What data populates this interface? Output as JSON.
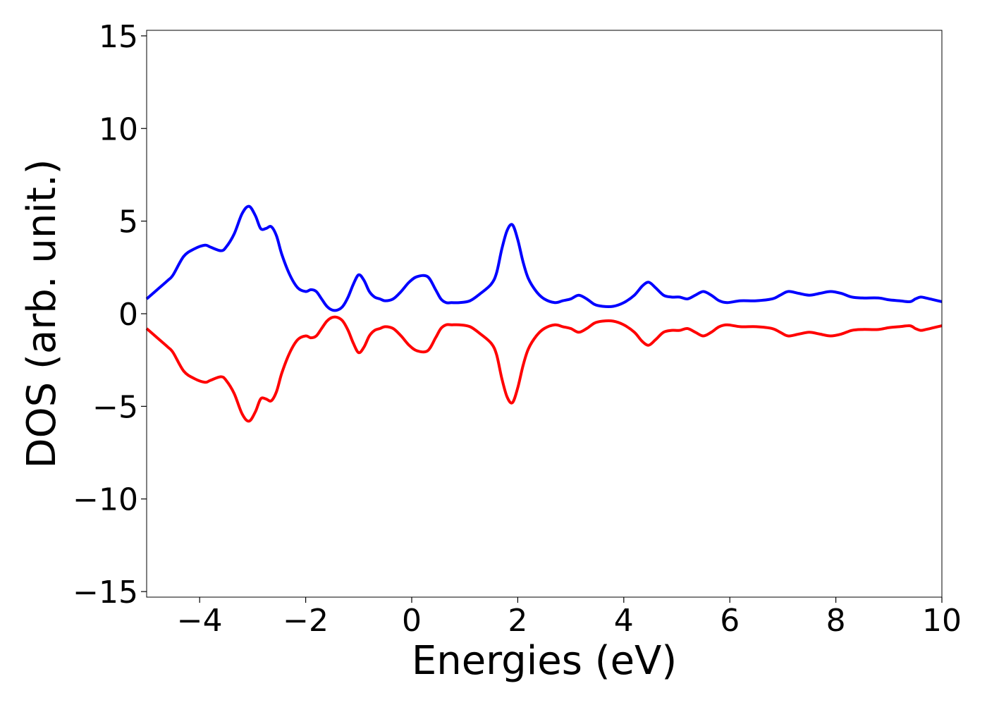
{
  "chart_data": {
    "type": "line",
    "title": "",
    "xlabel": "Energies (eV)",
    "ylabel": "DOS (arb. unit.)",
    "xlim": [
      -5,
      10
    ],
    "ylim": [
      -15.3,
      15.3
    ],
    "grid": false,
    "legend": "none",
    "x_ticks": [
      -4,
      -2,
      0,
      2,
      4,
      6,
      8,
      10
    ],
    "x_tick_labels": [
      "−4",
      "−2",
      "0",
      "2",
      "4",
      "6",
      "8",
      "10"
    ],
    "y_ticks": [
      15,
      10,
      5,
      0,
      -5,
      -10,
      -15
    ],
    "y_tick_labels": [
      "15",
      "10",
      "5",
      "0",
      "−5",
      "−10",
      "−15"
    ],
    "series": [
      {
        "color": "#0000ff",
        "x": [
          -5.0,
          -4.8,
          -4.6,
          -4.5,
          -4.3,
          -4.1,
          -3.9,
          -3.8,
          -3.6,
          -3.5,
          -3.35,
          -3.2,
          -3.07,
          -2.95,
          -2.85,
          -2.75,
          -2.65,
          -2.55,
          -2.45,
          -2.3,
          -2.15,
          -2.0,
          -1.9,
          -1.8,
          -1.7,
          -1.6,
          -1.5,
          -1.4,
          -1.3,
          -1.2,
          -1.1,
          -1.0,
          -0.9,
          -0.8,
          -0.7,
          -0.6,
          -0.5,
          -0.35,
          -0.2,
          -0.05,
          0.1,
          0.3,
          0.45,
          0.55,
          0.65,
          0.75,
          0.9,
          1.1,
          1.3,
          1.5,
          1.6,
          1.7,
          1.8,
          1.9,
          2.0,
          2.1,
          2.2,
          2.35,
          2.5,
          2.7,
          2.85,
          3.0,
          3.15,
          3.3,
          3.45,
          3.6,
          3.8,
          4.0,
          4.2,
          4.35,
          4.47,
          4.6,
          4.75,
          4.9,
          5.05,
          5.2,
          5.35,
          5.5,
          5.65,
          5.8,
          5.95,
          6.2,
          6.5,
          6.8,
          6.95,
          7.1,
          7.3,
          7.5,
          7.7,
          7.9,
          8.1,
          8.3,
          8.5,
          8.8,
          9.0,
          9.2,
          9.4,
          9.5,
          9.6,
          9.7,
          9.85,
          10.0
        ],
        "y": [
          0.8,
          1.3,
          1.8,
          2.1,
          3.1,
          3.5,
          3.7,
          3.6,
          3.4,
          3.6,
          4.3,
          5.4,
          5.8,
          5.3,
          4.6,
          4.6,
          4.7,
          4.2,
          3.2,
          2.1,
          1.4,
          1.2,
          1.3,
          1.2,
          0.8,
          0.4,
          0.2,
          0.2,
          0.4,
          0.9,
          1.6,
          2.1,
          1.8,
          1.2,
          0.9,
          0.8,
          0.7,
          0.8,
          1.2,
          1.7,
          2.0,
          2.0,
          1.3,
          0.8,
          0.6,
          0.6,
          0.6,
          0.7,
          1.1,
          1.6,
          2.2,
          3.5,
          4.5,
          4.8,
          4.0,
          2.8,
          1.9,
          1.2,
          0.8,
          0.6,
          0.7,
          0.8,
          1.0,
          0.8,
          0.5,
          0.4,
          0.4,
          0.6,
          1.0,
          1.5,
          1.7,
          1.4,
          1.0,
          0.9,
          0.9,
          0.8,
          1.0,
          1.2,
          1.0,
          0.7,
          0.6,
          0.7,
          0.7,
          0.8,
          1.0,
          1.2,
          1.1,
          1.0,
          1.1,
          1.2,
          1.1,
          0.9,
          0.85,
          0.85,
          0.75,
          0.7,
          0.65,
          0.8,
          0.9,
          0.85,
          0.75,
          0.65
        ]
      },
      {
        "color": "#ff0000",
        "x": [
          -5.0,
          -4.8,
          -4.6,
          -4.5,
          -4.3,
          -4.1,
          -3.9,
          -3.8,
          -3.6,
          -3.5,
          -3.35,
          -3.2,
          -3.07,
          -2.95,
          -2.85,
          -2.75,
          -2.65,
          -2.55,
          -2.45,
          -2.3,
          -2.15,
          -2.0,
          -1.9,
          -1.8,
          -1.7,
          -1.6,
          -1.5,
          -1.4,
          -1.3,
          -1.2,
          -1.1,
          -1.0,
          -0.9,
          -0.8,
          -0.7,
          -0.6,
          -0.5,
          -0.35,
          -0.2,
          -0.05,
          0.1,
          0.3,
          0.45,
          0.55,
          0.65,
          0.75,
          0.9,
          1.1,
          1.3,
          1.5,
          1.6,
          1.7,
          1.8,
          1.9,
          2.0,
          2.1,
          2.2,
          2.35,
          2.5,
          2.7,
          2.85,
          3.0,
          3.15,
          3.3,
          3.45,
          3.6,
          3.8,
          4.0,
          4.2,
          4.35,
          4.47,
          4.6,
          4.75,
          4.9,
          5.05,
          5.2,
          5.35,
          5.5,
          5.65,
          5.8,
          5.95,
          6.2,
          6.5,
          6.8,
          6.95,
          7.1,
          7.3,
          7.5,
          7.7,
          7.9,
          8.1,
          8.3,
          8.5,
          8.8,
          9.0,
          9.2,
          9.4,
          9.5,
          9.6,
          9.7,
          9.85,
          10.0
        ],
        "y": [
          -0.8,
          -1.3,
          -1.8,
          -2.1,
          -3.1,
          -3.5,
          -3.7,
          -3.6,
          -3.4,
          -3.6,
          -4.3,
          -5.4,
          -5.8,
          -5.3,
          -4.6,
          -4.6,
          -4.7,
          -4.2,
          -3.2,
          -2.1,
          -1.4,
          -1.2,
          -1.3,
          -1.2,
          -0.8,
          -0.4,
          -0.2,
          -0.2,
          -0.4,
          -0.9,
          -1.6,
          -2.1,
          -1.8,
          -1.2,
          -0.9,
          -0.8,
          -0.7,
          -0.8,
          -1.2,
          -1.7,
          -2.0,
          -2.0,
          -1.3,
          -0.8,
          -0.6,
          -0.6,
          -0.6,
          -0.7,
          -1.1,
          -1.6,
          -2.2,
          -3.5,
          -4.5,
          -4.8,
          -4.0,
          -2.8,
          -1.9,
          -1.2,
          -0.8,
          -0.6,
          -0.7,
          -0.8,
          -1.0,
          -0.8,
          -0.5,
          -0.4,
          -0.4,
          -0.6,
          -1.0,
          -1.5,
          -1.7,
          -1.4,
          -1.0,
          -0.9,
          -0.9,
          -0.8,
          -1.0,
          -1.2,
          -1.0,
          -0.7,
          -0.6,
          -0.7,
          -0.7,
          -0.8,
          -1.0,
          -1.2,
          -1.1,
          -1.0,
          -1.1,
          -1.2,
          -1.1,
          -0.9,
          -0.85,
          -0.85,
          -0.75,
          -0.7,
          -0.65,
          -0.8,
          -0.9,
          -0.85,
          -0.75,
          -0.65
        ]
      }
    ]
  }
}
